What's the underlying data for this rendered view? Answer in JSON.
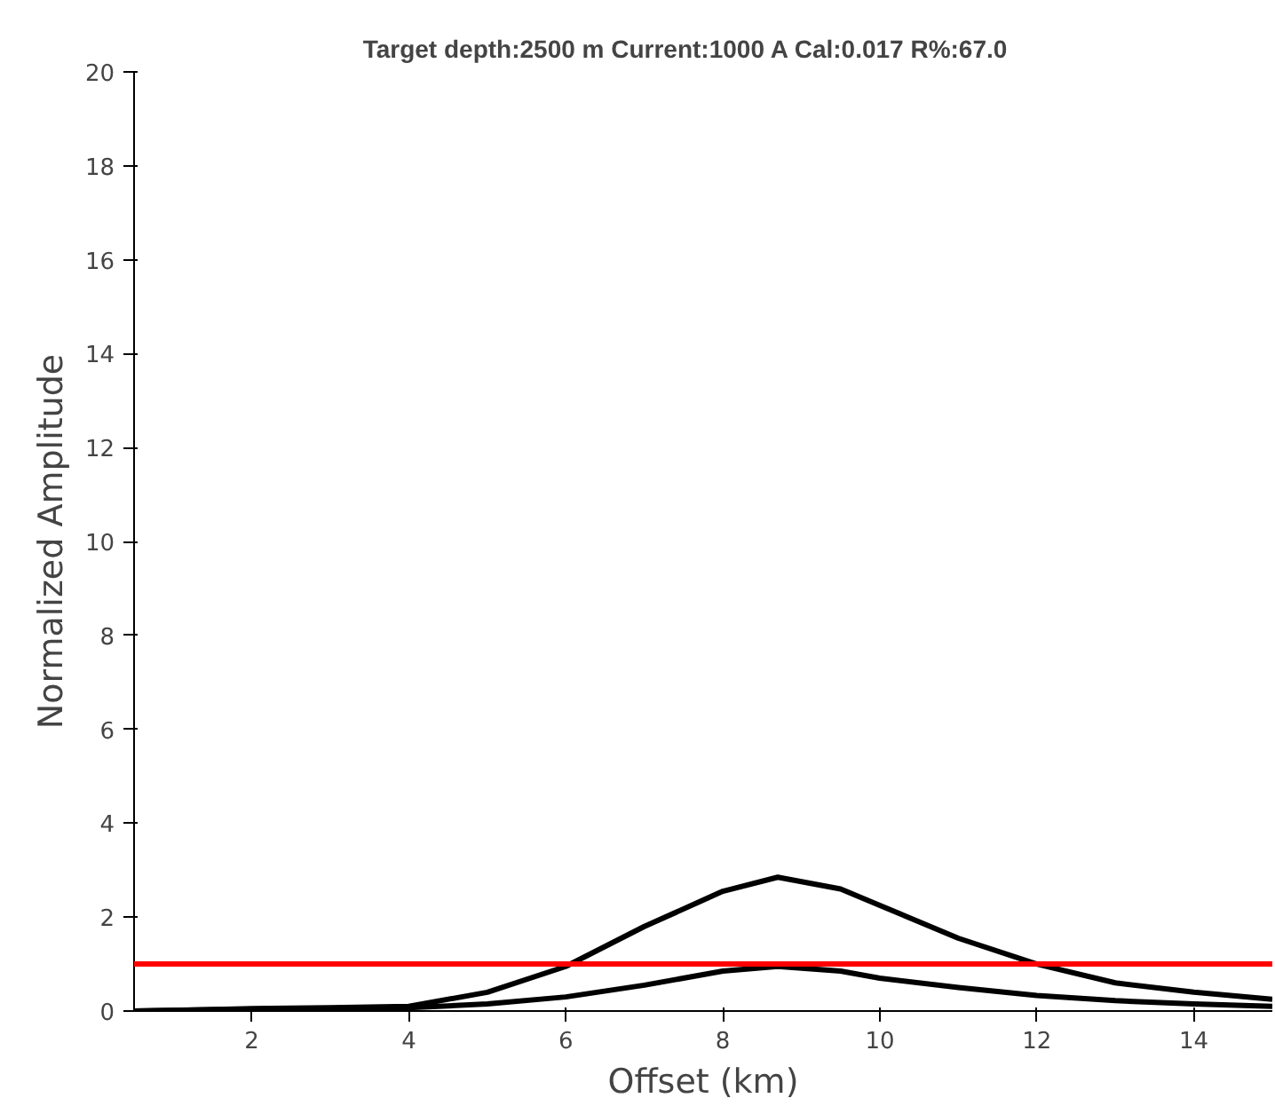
{
  "chart_data": {
    "type": "line",
    "title": "Target depth:2500 m  Current:1000 A   Cal:0.017   R%:67.0",
    "xlabel": "Offset (km)",
    "ylabel": "Normalized Amplitude",
    "x": [
      0.5,
      2,
      3,
      4,
      5,
      6,
      7,
      8,
      8.7,
      9.5,
      10,
      11,
      12,
      13,
      14,
      15
    ],
    "series": [
      {
        "color": "#000000",
        "values": [
          0,
          0.05,
          0.07,
          0.1,
          0.4,
          0.95,
          1.8,
          2.55,
          2.85,
          2.6,
          2.25,
          1.55,
          1.0,
          0.6,
          0.4,
          0.25
        ]
      },
      {
        "color": "#000000",
        "values": [
          0,
          0.04,
          0.05,
          0.07,
          0.15,
          0.3,
          0.55,
          0.85,
          0.95,
          0.85,
          0.7,
          0.5,
          0.33,
          0.22,
          0.15,
          0.1
        ]
      }
    ],
    "ref_lines": [
      {
        "axis": "y",
        "value": 1,
        "color": "#ff0000"
      }
    ],
    "xlim": [
      0.5,
      15
    ],
    "ylim": [
      0,
      20
    ],
    "xticks": [
      2,
      4,
      6,
      8,
      10,
      12,
      14
    ],
    "yticks": [
      0,
      2,
      4,
      6,
      8,
      10,
      12,
      14,
      16,
      18,
      20
    ],
    "grid": false,
    "line_style": "solid",
    "marker": "none"
  }
}
